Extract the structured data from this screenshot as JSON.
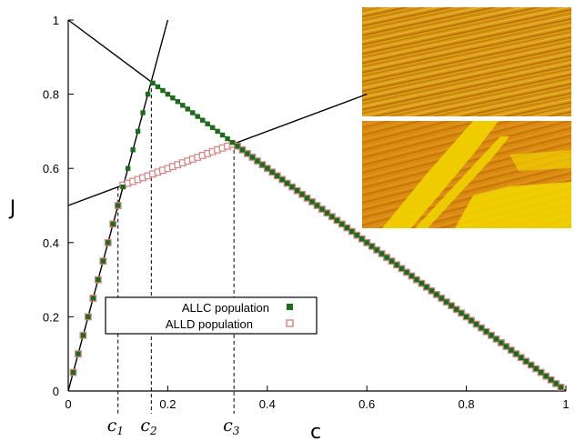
{
  "chart_data": {
    "type": "scatter",
    "xlabel": "c",
    "ylabel": "J",
    "xlim": [
      0,
      1
    ],
    "ylim": [
      0,
      1
    ],
    "xticks": [
      "0",
      "0.2",
      "0.4",
      "0.6",
      "0.8",
      "1"
    ],
    "yticks": [
      "0",
      "0.2",
      "0.4",
      "0.6",
      "0.8",
      "1"
    ],
    "grid": false,
    "legend_position": "lower-left",
    "series": [
      {
        "name": "ALLC population",
        "marker": "filled-square",
        "color": "#1e6b1e",
        "x": [
          0.01,
          0.02,
          0.03,
          0.04,
          0.05,
          0.06,
          0.07,
          0.08,
          0.09,
          0.1,
          0.11,
          0.12,
          0.13,
          0.14,
          0.15,
          0.16,
          0.17,
          0.18,
          0.19,
          0.2,
          0.21,
          0.22,
          0.23,
          0.24,
          0.25,
          0.26,
          0.27,
          0.28,
          0.29,
          0.3,
          0.31,
          0.32,
          0.33,
          0.34,
          0.35,
          0.36,
          0.37,
          0.38,
          0.39,
          0.4,
          0.41,
          0.42,
          0.43,
          0.44,
          0.45,
          0.46,
          0.47,
          0.48,
          0.49,
          0.5,
          0.51,
          0.52,
          0.53,
          0.54,
          0.55,
          0.56,
          0.57,
          0.58,
          0.59,
          0.6,
          0.61,
          0.62,
          0.63,
          0.64,
          0.65,
          0.66,
          0.67,
          0.68,
          0.69,
          0.7,
          0.71,
          0.72,
          0.73,
          0.74,
          0.75,
          0.76,
          0.77,
          0.78,
          0.79,
          0.8,
          0.81,
          0.82,
          0.83,
          0.84,
          0.85,
          0.86,
          0.87,
          0.88,
          0.89,
          0.9,
          0.91,
          0.92,
          0.93,
          0.94,
          0.95,
          0.96,
          0.97,
          0.98,
          0.99
        ],
        "y": [
          0.05,
          0.1,
          0.15,
          0.2,
          0.25,
          0.3,
          0.35,
          0.4,
          0.45,
          0.5,
          0.55,
          0.6,
          0.65,
          0.7,
          0.75,
          0.8,
          0.83,
          0.82,
          0.81,
          0.8,
          0.79,
          0.78,
          0.77,
          0.76,
          0.75,
          0.74,
          0.73,
          0.72,
          0.71,
          0.7,
          0.69,
          0.68,
          0.67,
          0.66,
          0.65,
          0.64,
          0.63,
          0.62,
          0.61,
          0.6,
          0.59,
          0.58,
          0.57,
          0.56,
          0.55,
          0.54,
          0.53,
          0.52,
          0.51,
          0.5,
          0.49,
          0.48,
          0.47,
          0.46,
          0.45,
          0.44,
          0.43,
          0.42,
          0.41,
          0.4,
          0.39,
          0.38,
          0.37,
          0.36,
          0.35,
          0.34,
          0.33,
          0.32,
          0.31,
          0.3,
          0.29,
          0.28,
          0.27,
          0.26,
          0.25,
          0.24,
          0.23,
          0.22,
          0.21,
          0.2,
          0.19,
          0.18,
          0.17,
          0.16,
          0.15,
          0.14,
          0.13,
          0.12,
          0.11,
          0.1,
          0.09,
          0.08,
          0.07,
          0.06,
          0.05,
          0.04,
          0.03,
          0.02,
          0.01
        ]
      },
      {
        "name": "ALLD population",
        "marker": "open-square",
        "color": "#d98080",
        "x": [
          0.01,
          0.02,
          0.03,
          0.04,
          0.05,
          0.06,
          0.07,
          0.08,
          0.09,
          0.1,
          0.11,
          0.12,
          0.13,
          0.14,
          0.15,
          0.16,
          0.17,
          0.18,
          0.19,
          0.2,
          0.21,
          0.22,
          0.23,
          0.24,
          0.25,
          0.26,
          0.27,
          0.28,
          0.29,
          0.3,
          0.31,
          0.32,
          0.33,
          0.34,
          0.35,
          0.36,
          0.37,
          0.38,
          0.39,
          0.4,
          0.41,
          0.42,
          0.43,
          0.44,
          0.45,
          0.46,
          0.47,
          0.48,
          0.49,
          0.5,
          0.51,
          0.52,
          0.53,
          0.54,
          0.55,
          0.56,
          0.57,
          0.58,
          0.59,
          0.6,
          0.61,
          0.62,
          0.63,
          0.64,
          0.65,
          0.66,
          0.67,
          0.68,
          0.69,
          0.7,
          0.71,
          0.72,
          0.73,
          0.74,
          0.75,
          0.76,
          0.77,
          0.78,
          0.79,
          0.8,
          0.81,
          0.82,
          0.83,
          0.84,
          0.85,
          0.86,
          0.87,
          0.88,
          0.89,
          0.9,
          0.91,
          0.92,
          0.93,
          0.94,
          0.95,
          0.96,
          0.97,
          0.98,
          0.99
        ],
        "y": [
          0.05,
          0.1,
          0.15,
          0.2,
          0.25,
          0.3,
          0.35,
          0.4,
          0.45,
          0.5,
          0.555,
          0.56,
          0.565,
          0.57,
          0.575,
          0.58,
          0.585,
          0.59,
          0.595,
          0.6,
          0.605,
          0.61,
          0.615,
          0.62,
          0.625,
          0.63,
          0.635,
          0.64,
          0.645,
          0.65,
          0.655,
          0.66,
          0.665,
          0.66,
          0.65,
          0.64,
          0.63,
          0.62,
          0.61,
          0.6,
          0.59,
          0.58,
          0.57,
          0.56,
          0.55,
          0.54,
          0.53,
          0.52,
          0.51,
          0.5,
          0.49,
          0.48,
          0.47,
          0.46,
          0.45,
          0.44,
          0.43,
          0.42,
          0.41,
          0.4,
          0.39,
          0.38,
          0.37,
          0.36,
          0.35,
          0.34,
          0.33,
          0.32,
          0.31,
          0.3,
          0.29,
          0.28,
          0.27,
          0.26,
          0.25,
          0.24,
          0.23,
          0.22,
          0.21,
          0.2,
          0.19,
          0.18,
          0.17,
          0.16,
          0.15,
          0.14,
          0.13,
          0.12,
          0.11,
          0.1,
          0.09,
          0.08,
          0.07,
          0.06,
          0.05,
          0.04,
          0.03,
          0.02,
          0.01
        ]
      }
    ],
    "reference_lines": [
      {
        "x1": 0,
        "y1": 0,
        "x2": 0.2,
        "y2": 1.0
      },
      {
        "x1": 0,
        "y1": 1.0,
        "x2": 1.0,
        "y2": 0
      },
      {
        "x1": 0,
        "y1": 0.5,
        "x2": 0.6,
        "y2": 0.8
      }
    ],
    "critical_points": [
      {
        "label": "c",
        "sub": "1",
        "x": 0.1,
        "y": 0.55
      },
      {
        "label": "c",
        "sub": "2",
        "x": 0.167,
        "y": 0.833
      },
      {
        "label": "c",
        "sub": "3",
        "x": 0.333,
        "y": 0.667
      }
    ],
    "insets": [
      {
        "kind": "pattern",
        "colors": [
          "#d99a14",
          "#b86b05",
          "#e8b83a"
        ],
        "style": "diagonal-stripes"
      },
      {
        "kind": "pattern",
        "colors": [
          "#d98a10",
          "#f0d000",
          "#c46e06"
        ],
        "style": "diagonal-bands"
      }
    ]
  }
}
